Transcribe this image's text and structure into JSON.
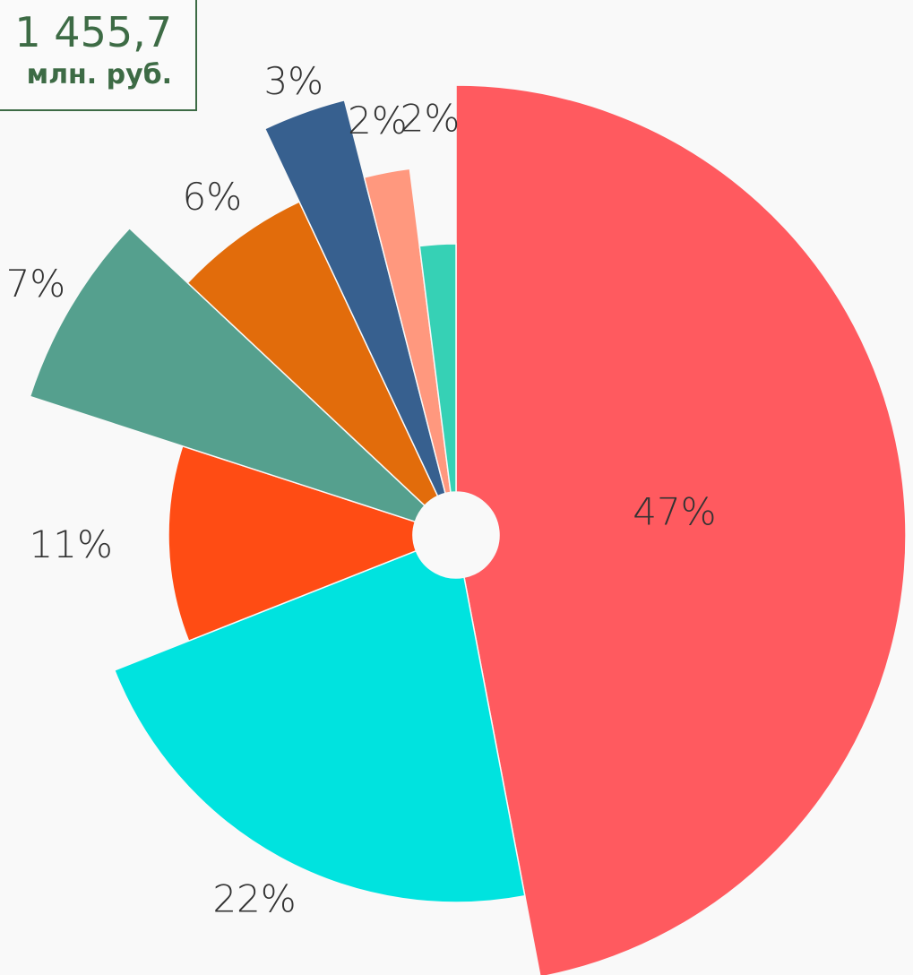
{
  "chart_data": {
    "type": "pie",
    "values": [
      47,
      22,
      11,
      7,
      6,
      3,
      2,
      2
    ],
    "value_labels": [
      "47%",
      "22%",
      "11%",
      "7%",
      "6%",
      "3%",
      "2%",
      "2%"
    ],
    "colors": [
      "#ff5a5f",
      "#00e3df",
      "#ff4c14",
      "#55a08e",
      "#e26c0b",
      "#37608f",
      "#ff987e",
      "#36d1b5"
    ],
    "total": "1 455,7",
    "unit": "млн. руб."
  }
}
